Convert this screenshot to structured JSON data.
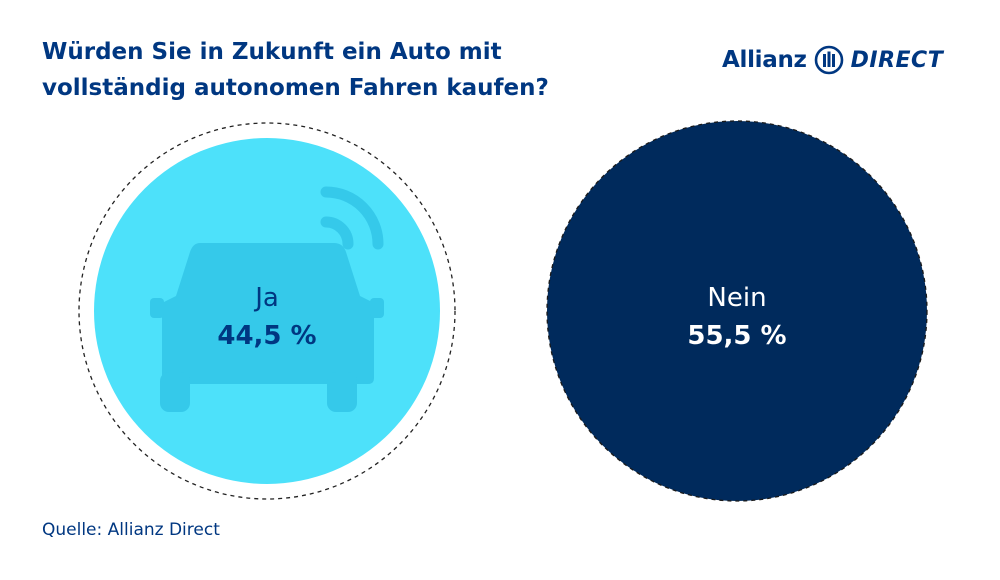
{
  "header": {
    "title_lines": [
      "Würden Sie in Zukunft ein Auto mit",
      "vollständig autonomen Fahren kaufen?"
    ]
  },
  "logo": {
    "brand": "Allianz",
    "product": "DIRECT"
  },
  "chart_data": {
    "type": "bubble",
    "title": "Würden Sie in Zukunft ein Auto mit vollständig autonomen Fahren kaufen?",
    "unit": "%",
    "series": [
      {
        "label": "Ja",
        "value": 44.5,
        "display": "44,5 %",
        "color": "#4de1fa",
        "text_color": "#003781",
        "icon": "autonomous-car-icon"
      },
      {
        "label": "Nein",
        "value": 55.5,
        "display": "55,5 %",
        "color": "#002a5c",
        "text_color": "#ffffff"
      }
    ]
  },
  "footer": {
    "source": "Quelle: Allianz Direct"
  }
}
